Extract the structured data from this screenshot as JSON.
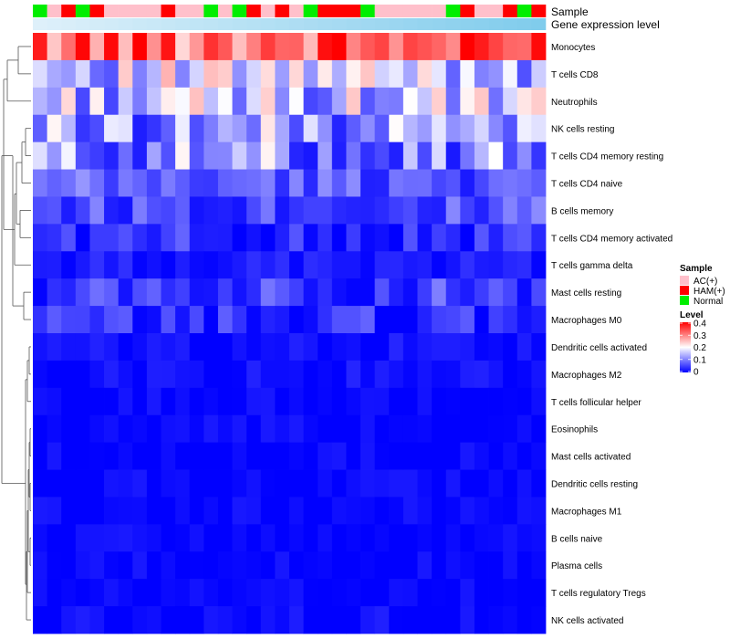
{
  "chart_data": {
    "type": "heatmap",
    "title": "",
    "annotation_tracks": [
      "Sample",
      "Gene expression level"
    ],
    "sample_groups": [
      "N",
      "A",
      "H",
      "N",
      "H",
      "A",
      "A",
      "A",
      "A",
      "H",
      "A",
      "A",
      "N",
      "A",
      "N",
      "H",
      "A",
      "H",
      "A",
      "N",
      "H",
      "H",
      "H",
      "N",
      "A",
      "A",
      "A",
      "A",
      "A",
      "N",
      "H",
      "A",
      "A",
      "H",
      "N",
      "H"
    ],
    "rows": [
      "Monocytes",
      "T cells CD8",
      "Neutrophils",
      "NK cells resting",
      "T cells CD4 memory resting",
      "T cells CD4 naive",
      "B cells memory",
      "T cells CD4 memory activated",
      "T cells gamma delta",
      "Mast cells resting",
      "Macrophages M0",
      "Dendritic cells activated",
      "Macrophages M2",
      "T cells follicular helper",
      "Eosinophils",
      "Mast cells activated",
      "Dendritic cells resting",
      "Macrophages M1",
      "B cells naive",
      "Plasma cells",
      "T cells regulatory  Tregs",
      "NK cells activated"
    ],
    "row_base_values": [
      0.33,
      0.16,
      0.15,
      0.12,
      0.11,
      0.07,
      0.06,
      0.03,
      0.02,
      0.05,
      0.03,
      0.01,
      0.01,
      0.0,
      0.0,
      0.0,
      0.0,
      0.0,
      0.0,
      0.0,
      0.0,
      0.005
    ],
    "value_range": [
      0,
      0.4
    ],
    "color_scale": {
      "low": "#0000ff",
      "mid": "#ffffff",
      "high": "#ff0000",
      "mid_value": 0.2
    },
    "legend": {
      "sample_title": "Sample",
      "sample_items": [
        {
          "key": "A",
          "label": "AC(+)",
          "color": "#ffc0cb"
        },
        {
          "key": "H",
          "label": "HAM(+)",
          "color": "#ff0000"
        },
        {
          "key": "N",
          "label": "Normal",
          "color": "#00ee00"
        }
      ],
      "level_title": "Level",
      "level_ticks": [
        "0.4",
        "0.3",
        "0.2",
        "0.1",
        "0"
      ]
    },
    "expression_track_color": "#87ceeb"
  }
}
